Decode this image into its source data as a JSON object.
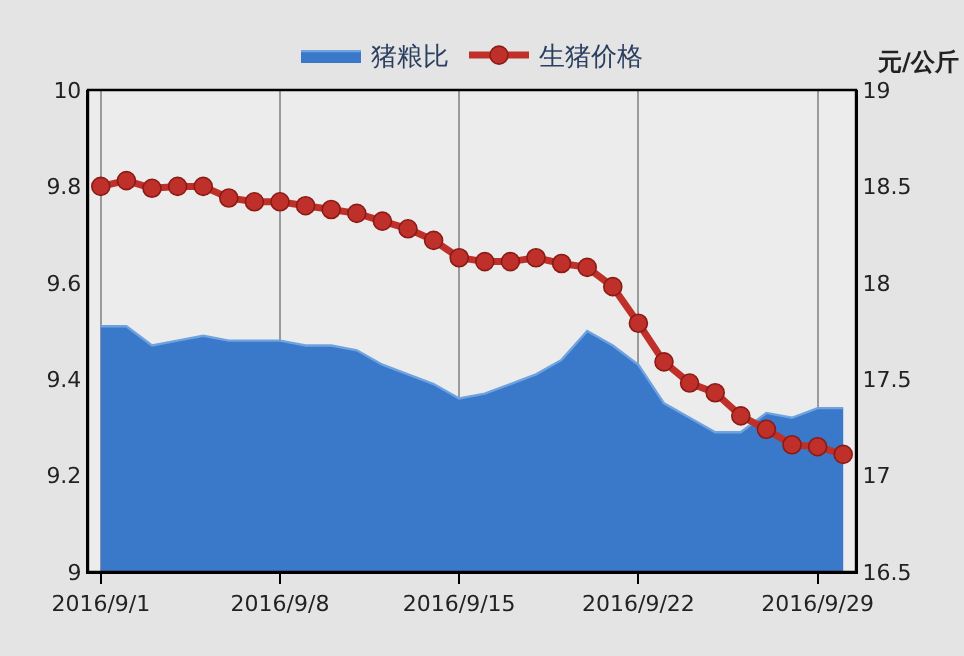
{
  "chart_data": {
    "type": "area",
    "y2label": "元/公斤",
    "x": [
      "2016-09-01",
      "2016-09-02",
      "2016-09-03",
      "2016-09-04",
      "2016-09-05",
      "2016-09-06",
      "2016-09-07",
      "2016-09-08",
      "2016-09-09",
      "2016-09-10",
      "2016-09-11",
      "2016-09-12",
      "2016-09-13",
      "2016-09-14",
      "2016-09-15",
      "2016-09-16",
      "2016-09-17",
      "2016-09-18",
      "2016-09-19",
      "2016-09-20",
      "2016-09-21",
      "2016-09-22",
      "2016-09-23",
      "2016-09-24",
      "2016-09-25",
      "2016-09-26",
      "2016-09-27",
      "2016-09-28",
      "2016-09-29",
      "2016-09-30"
    ],
    "series": [
      {
        "name": "猪粮比",
        "color": "#3a78c9",
        "values": [
          9.51,
          9.51,
          9.47,
          9.48,
          9.49,
          9.48,
          9.48,
          9.48,
          9.47,
          9.47,
          9.46,
          9.43,
          9.41,
          9.39,
          9.36,
          9.37,
          9.39,
          9.41,
          9.44,
          9.5,
          9.47,
          9.43,
          9.35,
          9.32,
          9.29,
          9.29,
          9.33,
          9.32,
          9.34,
          9.34
        ]
      },
      {
        "name": "生猪价格",
        "type": "line",
        "axis": "y2",
        "color": "#c0302a",
        "marker": "circle",
        "values": [
          18.5,
          18.53,
          18.49,
          18.5,
          18.5,
          18.44,
          18.42,
          18.42,
          18.4,
          18.38,
          18.36,
          18.32,
          18.28,
          18.22,
          18.13,
          18.11,
          18.11,
          18.13,
          18.1,
          18.08,
          17.98,
          17.79,
          17.59,
          17.48,
          17.43,
          17.31,
          17.24,
          17.16,
          17.15,
          17.11
        ]
      }
    ],
    "xlim": [
      "2016-08-31T12:00",
      "2016-09-30T12:00"
    ],
    "xticks": [
      {
        "value": "2016-09-01",
        "label": "2016/9/1"
      },
      {
        "value": "2016-09-08",
        "label": "2016/9/8"
      },
      {
        "value": "2016-09-15",
        "label": "2016/9/15"
      },
      {
        "value": "2016-09-22",
        "label": "2016/9/22"
      },
      {
        "value": "2016-09-29",
        "label": "2016/9/29"
      }
    ],
    "ylim": [
      9,
      10
    ],
    "yticks": [
      9,
      9.2,
      9.4,
      9.6,
      9.8,
      10
    ],
    "y2lim": [
      16.5,
      19
    ],
    "y2ticks": [
      16.5,
      17,
      17.5,
      18,
      18.5,
      19
    ],
    "grid": "x",
    "legend": "top"
  }
}
